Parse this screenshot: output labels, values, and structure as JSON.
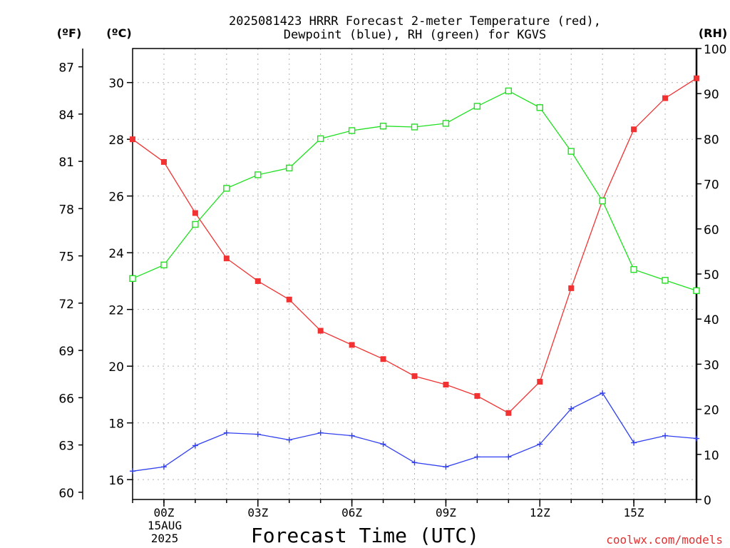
{
  "chart_data": {
    "type": "line",
    "title_lines": [
      "2025081423 HRRR Forecast 2-meter Temperature (red),",
      "Dewpoint (blue), RH (green) for KGVS"
    ],
    "xlabel": "Forecast Time (UTC)",
    "left_unit_f": "(ºF)",
    "left_unit_c": "(ºC)",
    "right_unit": "(RH)",
    "watermark": "coolwx.com/models",
    "x_date_label": [
      "15AUG",
      "2025"
    ],
    "x_hours": [
      -1,
      0,
      1,
      2,
      3,
      4,
      5,
      6,
      7,
      8,
      9,
      10,
      11,
      12,
      13,
      14,
      15,
      16,
      17
    ],
    "x_range": [
      -1,
      17
    ],
    "x_ticks": [
      {
        "hour": 0,
        "label": "00Z"
      },
      {
        "hour": 3,
        "label": "03Z"
      },
      {
        "hour": 6,
        "label": "06Z"
      },
      {
        "hour": 9,
        "label": "09Z"
      },
      {
        "hour": 12,
        "label": "12Z"
      },
      {
        "hour": 15,
        "label": "15Z"
      }
    ],
    "celsius_range": [
      15.3,
      31.2
    ],
    "celsius_ticks": [
      16,
      18,
      20,
      22,
      24,
      26,
      28,
      30
    ],
    "fahrenheit_ticks": [
      60,
      63,
      66,
      69,
      72,
      75,
      78,
      81,
      84,
      87
    ],
    "rh_range": [
      0,
      100
    ],
    "rh_ticks": [
      0,
      10,
      20,
      30,
      40,
      50,
      60,
      70,
      80,
      90,
      100
    ],
    "grid": true,
    "series": [
      {
        "key": "temperature",
        "color": "#f03232",
        "marker": "filled-square",
        "axis": "celsius",
        "values": [
          28.0,
          27.2,
          25.4,
          23.8,
          23.0,
          22.35,
          21.25,
          20.75,
          20.25,
          19.65,
          19.35,
          18.95,
          18.35,
          19.45,
          22.75,
          25.85,
          28.35,
          29.45,
          30.15
        ]
      },
      {
        "key": "dewpoint",
        "color": "#3040f0",
        "marker": "plus",
        "axis": "celsius",
        "values": [
          16.3,
          16.45,
          17.2,
          17.65,
          17.6,
          17.4,
          17.65,
          17.55,
          17.25,
          16.6,
          16.45,
          16.8,
          16.8,
          17.25,
          18.5,
          19.05,
          17.3,
          17.55,
          17.45
        ]
      },
      {
        "key": "rh",
        "color": "#20e020",
        "marker": "open-square",
        "axis": "rh",
        "values": [
          49,
          52,
          61,
          69,
          72,
          73.5,
          80,
          81.8,
          82.8,
          82.6,
          83.4,
          87.2,
          90.6,
          86.9,
          77.2,
          66.2,
          51,
          48.6,
          46.3
        ]
      }
    ]
  }
}
